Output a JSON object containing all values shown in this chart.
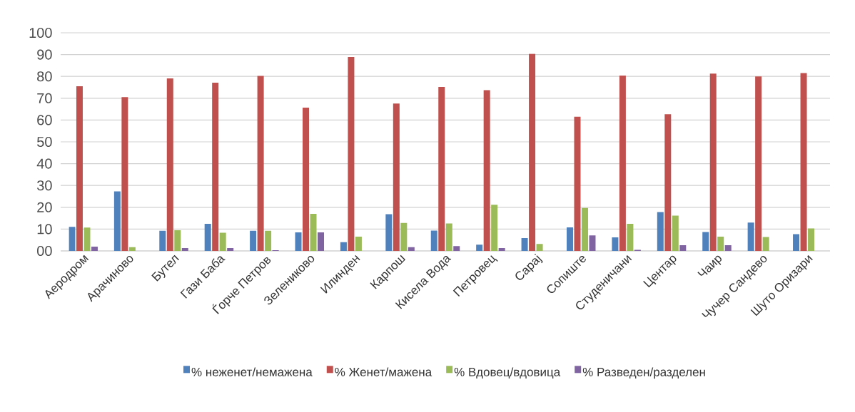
{
  "chart_data": {
    "type": "bar",
    "categories": [
      "Аеродром",
      "Арачиново",
      "Бутел",
      "Гази Баба",
      "Ѓорче Петров",
      "Зелениково",
      "Илинден",
      "Карпош",
      "Кисела Вода",
      "Петровец",
      "Сарај",
      "Сопиште",
      "Студеничани",
      "Центар",
      "Чаир",
      "Чучер Сандево",
      "Шуто Оризари"
    ],
    "series": [
      {
        "name": "% неженет/немажена",
        "color": "#4f81bd",
        "values": [
          11.0,
          27.3,
          9.2,
          12.4,
          9.2,
          8.5,
          4.0,
          16.8,
          9.3,
          2.9,
          5.9,
          10.8,
          6.2,
          17.8,
          8.7,
          13.0,
          7.7
        ]
      },
      {
        "name": "% Женет/мажена",
        "color": "#c0504d",
        "values": [
          75.5,
          70.5,
          79.1,
          77.1,
          80.2,
          65.7,
          88.9,
          67.6,
          75.2,
          73.7,
          90.4,
          61.5,
          80.4,
          62.7,
          81.3,
          80.0,
          81.5
        ]
      },
      {
        "name": "% Вдовец/вдовица",
        "color": "#9bbb59",
        "values": [
          10.7,
          1.7,
          9.5,
          8.3,
          9.2,
          17.0,
          6.5,
          12.8,
          12.6,
          21.2,
          3.2,
          19.7,
          12.4,
          16.2,
          6.5,
          6.4,
          10.3
        ]
      },
      {
        "name": "% Разведен/разделен",
        "color": "#8064a2",
        "values": [
          2.0,
          0,
          1.3,
          1.3,
          0.3,
          8.5,
          0,
          1.7,
          2.2,
          1.3,
          0,
          7.1,
          0.5,
          2.6,
          2.6,
          0,
          0
        ]
      }
    ],
    "ylim": [
      0,
      100
    ],
    "yticks": [
      {
        "value": 0,
        "label": "00"
      },
      10,
      20,
      30,
      40,
      50,
      60,
      70,
      80,
      90,
      100
    ],
    "grid": "y",
    "legend": "bottom"
  }
}
